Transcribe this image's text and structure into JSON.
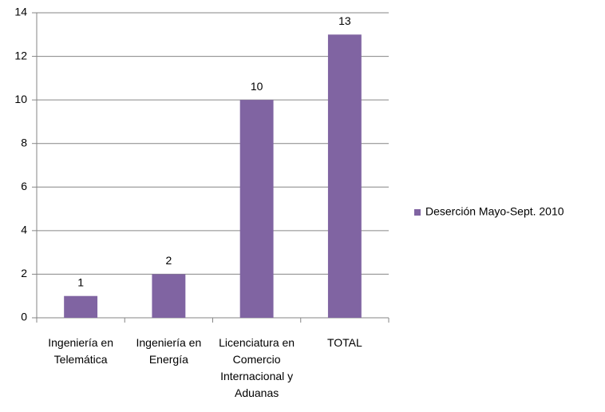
{
  "chart_data": {
    "type": "bar",
    "categories": [
      "Ingeniería en Telemática",
      "Ingeniería en Energía",
      "Licenciatura en Comercio Internacional y Aduanas",
      "TOTAL"
    ],
    "series": [
      {
        "name": "Deserción Mayo-Sept. 2010",
        "color": "#8064a2",
        "values": [
          1,
          2,
          10,
          13
        ]
      }
    ],
    "ylim": [
      0,
      14
    ],
    "yticks": [
      0,
      2,
      4,
      6,
      8,
      10,
      12,
      14
    ],
    "grid": true,
    "legend": "right"
  }
}
